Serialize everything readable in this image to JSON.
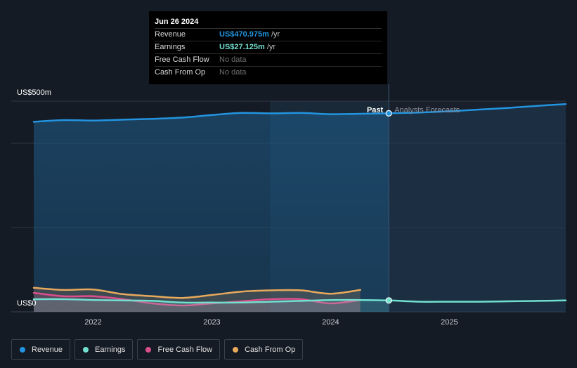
{
  "tooltip": {
    "date": "Jun 26 2024",
    "rows": [
      {
        "label": "Revenue",
        "value": "US$470.975m",
        "unit": "/yr",
        "color": "#2394df"
      },
      {
        "label": "Earnings",
        "value": "US$27.125m",
        "unit": "/yr",
        "color": "#72e0d0"
      },
      {
        "label": "Free Cash Flow",
        "value": "No data",
        "unit": "",
        "color": ""
      },
      {
        "label": "Cash From Op",
        "value": "No data",
        "unit": "",
        "color": ""
      }
    ]
  },
  "labels": {
    "past": "Past",
    "forecast": "Analysts Forecasts",
    "y_top": "US$500m",
    "y_zero": "US$0"
  },
  "legend": [
    {
      "label": "Revenue",
      "color": "#2394df"
    },
    {
      "label": "Earnings",
      "color": "#72e0d0"
    },
    {
      "label": "Free Cash Flow",
      "color": "#d94f8c"
    },
    {
      "label": "Cash From Op",
      "color": "#e8a95c"
    }
  ],
  "chart_data": {
    "type": "line",
    "title": "",
    "xlabel": "",
    "ylabel": "",
    "ylim": [
      0,
      500
    ],
    "xlim": [
      2021.5,
      2025.98
    ],
    "x_ticks": [
      2022,
      2023,
      2024,
      2025
    ],
    "x_tick_labels": [
      "2022",
      "2023",
      "2024",
      "2025"
    ],
    "past_end": 2024.49,
    "highlight_start": 2023.49,
    "series": [
      {
        "name": "Revenue",
        "color": "#2394df",
        "x": [
          2021.5,
          2021.75,
          2022.0,
          2022.25,
          2022.5,
          2022.75,
          2023.0,
          2023.25,
          2023.5,
          2023.75,
          2024.0,
          2024.25,
          2024.49,
          2024.75,
          2025.0,
          2025.25,
          2025.5,
          2025.75,
          2025.98
        ],
        "y": [
          451,
          455,
          454,
          456,
          458,
          461,
          467,
          472,
          471,
          472,
          469,
          470,
          471,
          473,
          476,
          480,
          484,
          489,
          493
        ]
      },
      {
        "name": "Earnings",
        "color": "#72e0d0",
        "x": [
          2021.5,
          2021.75,
          2022.0,
          2022.25,
          2022.5,
          2022.75,
          2023.0,
          2023.25,
          2023.5,
          2023.75,
          2024.0,
          2024.25,
          2024.49,
          2024.75,
          2025.0,
          2025.25,
          2025.5,
          2025.75,
          2025.98
        ],
        "y": [
          30,
          30,
          28,
          27,
          26,
          22,
          22,
          22,
          24,
          26,
          28,
          28,
          27,
          24,
          24,
          24,
          25,
          26,
          27
        ]
      },
      {
        "name": "Free Cash Flow",
        "color": "#d94f8c",
        "x": [
          2021.5,
          2021.75,
          2022.0,
          2022.25,
          2022.5,
          2022.75,
          2023.0,
          2023.25,
          2023.5,
          2023.75,
          2024.0,
          2024.25
        ],
        "y": [
          45,
          37,
          37,
          30,
          20,
          15,
          20,
          25,
          30,
          30,
          20,
          28
        ]
      },
      {
        "name": "Cash From Op",
        "color": "#e8a95c",
        "x": [
          2021.5,
          2021.75,
          2022.0,
          2022.25,
          2022.5,
          2022.75,
          2023.0,
          2023.25,
          2023.5,
          2023.75,
          2024.0,
          2024.25
        ],
        "y": [
          57,
          52,
          53,
          42,
          37,
          33,
          40,
          48,
          51,
          51,
          43,
          52
        ]
      }
    ]
  }
}
